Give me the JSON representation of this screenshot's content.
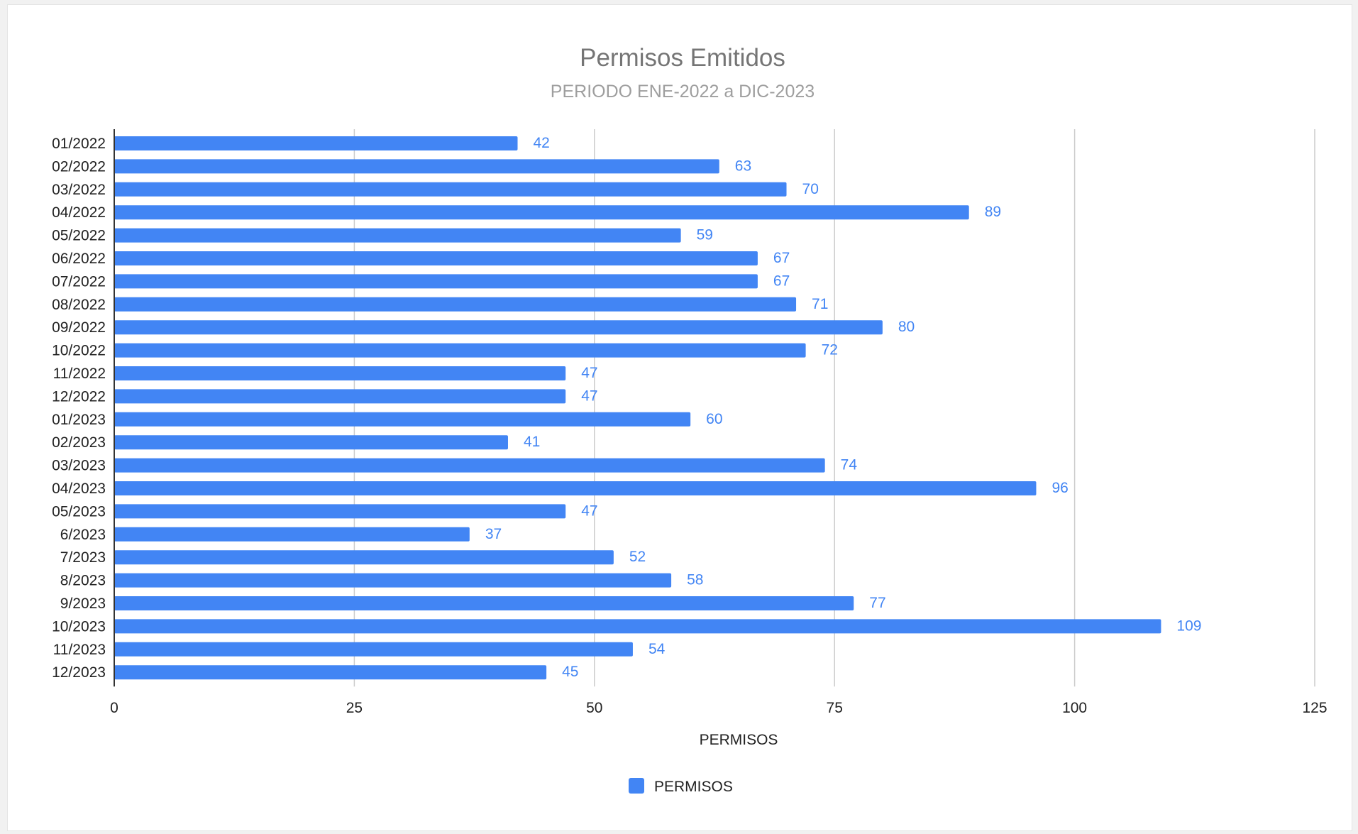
{
  "chart_data": {
    "type": "bar",
    "orientation": "horizontal",
    "title": "Permisos Emitidos",
    "subtitle": "PERIODO ENE-2022 a DIC-2023",
    "xlabel": "PERMISOS",
    "ylabel": "",
    "xlim": [
      0,
      125
    ],
    "xticks": [
      "0",
      "25",
      "50",
      "75",
      "100",
      "125"
    ],
    "grid": true,
    "legend_position": "bottom",
    "bar_color": "#4285f4",
    "categories": [
      "01/2022",
      "02/2022",
      "03/2022",
      "04/2022",
      "05/2022",
      "06/2022",
      "07/2022",
      "08/2022",
      "09/2022",
      "10/2022",
      "11/2022",
      "12/2022",
      "01/2023",
      "02/2023",
      "03/2023",
      "04/2023",
      "05/2023",
      "6/2023",
      "7/2023",
      "8/2023",
      "9/2023",
      "10/2023",
      "11/2023",
      "12/2023"
    ],
    "series": [
      {
        "name": "PERMISOS",
        "values": [
          42,
          63,
          70,
          89,
          59,
          67,
          67,
          71,
          80,
          72,
          47,
          47,
          60,
          41,
          74,
          96,
          47,
          37,
          52,
          58,
          77,
          109,
          54,
          45
        ]
      }
    ]
  }
}
